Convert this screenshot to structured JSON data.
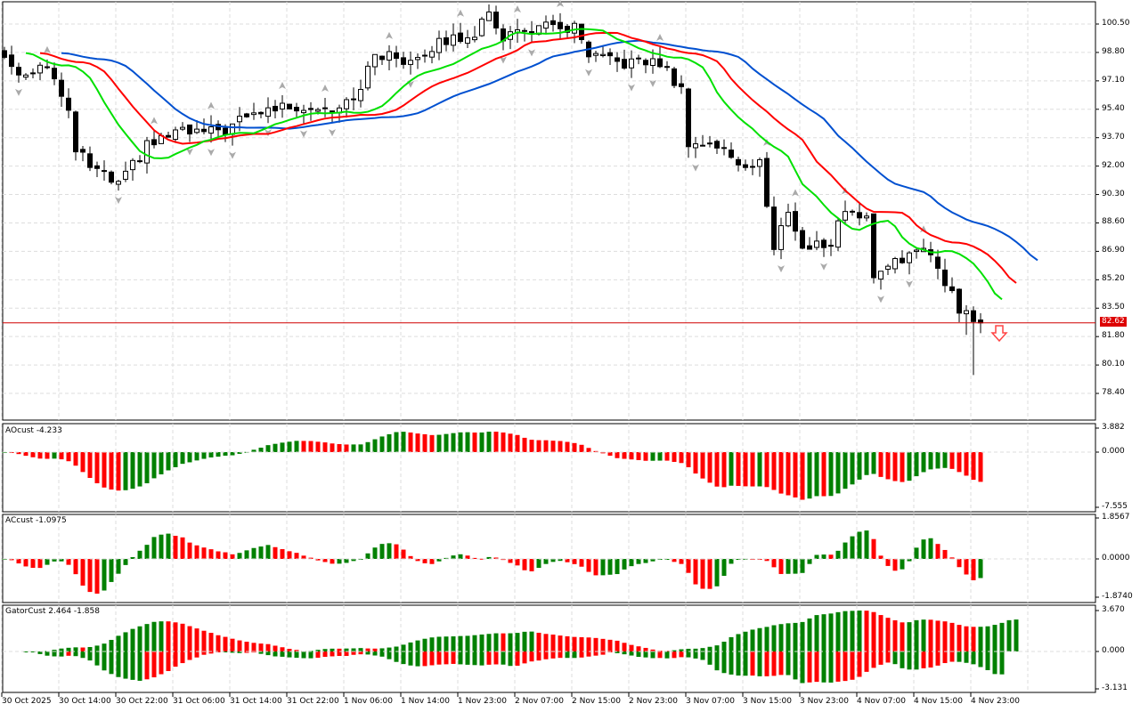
{
  "main": {
    "price_ticks": [
      "100.50",
      "98.80",
      "97.10",
      "95.40",
      "93.70",
      "92.00",
      "90.30",
      "88.60",
      "86.90",
      "85.20",
      "83.50",
      "81.80",
      "80.10",
      "78.40"
    ],
    "current_price": "82.62",
    "price_keypoints": [
      [
        0,
        98.5
      ],
      [
        2,
        97.5
      ],
      [
        6,
        98.2
      ],
      [
        9,
        95.0
      ],
      [
        10,
        93.0
      ],
      [
        12,
        92.0
      ],
      [
        16,
        90.8
      ],
      [
        20,
        93.2
      ],
      [
        24,
        94.0
      ],
      [
        30,
        94.0
      ],
      [
        36,
        95.3
      ],
      [
        40,
        95.6
      ],
      [
        46,
        95.5
      ],
      [
        50,
        96.5
      ],
      [
        52,
        98.8
      ],
      [
        56,
        98.3
      ],
      [
        62,
        99.5
      ],
      [
        66,
        100.0
      ],
      [
        68,
        101.0
      ],
      [
        70,
        99.8
      ],
      [
        75,
        100.3
      ],
      [
        80,
        100.2
      ],
      [
        82,
        98.5
      ],
      [
        86,
        98.2
      ],
      [
        92,
        98.2
      ],
      [
        95,
        96.5
      ],
      [
        96,
        93.5
      ],
      [
        100,
        93.2
      ],
      [
        104,
        92.0
      ],
      [
        106,
        92.3
      ],
      [
        108,
        86.9
      ],
      [
        110,
        89.5
      ],
      [
        112,
        87.0
      ],
      [
        116,
        87.5
      ],
      [
        118,
        89.5
      ],
      [
        121,
        88.8
      ],
      [
        122,
        85.5
      ],
      [
        125,
        86.5
      ],
      [
        130,
        86.8
      ],
      [
        132,
        85.2
      ],
      [
        134,
        83.5
      ],
      [
        136,
        82.7
      ],
      [
        137,
        82.62
      ]
    ],
    "colors": {
      "jaw": "#0050d0",
      "teeth": "#ff0000",
      "lips": "#00e000",
      "price_line": "#d00000",
      "bull": "#008000",
      "bear": "#ff0000"
    }
  },
  "ao": {
    "title": "AOcust -4.233",
    "ticks": [
      "3.882",
      "0.000",
      "-7.555"
    ],
    "range": [
      -7.555,
      3.882
    ]
  },
  "ac": {
    "title": "ACcust -1.0975",
    "ticks": [
      "1.8567",
      "0.0000",
      "-1.8740"
    ],
    "range": [
      -1.874,
      1.8567
    ]
  },
  "gator": {
    "title": "GatorCust 2.464 -1.858",
    "ticks": [
      "3.670",
      "0.000",
      "-3.131"
    ],
    "range": [
      -3.131,
      3.67
    ]
  },
  "time_labels": [
    "30 Oct 2025",
    "30 Oct 14:00",
    "30 Oct 22:00",
    "31 Oct 06:00",
    "31 Oct 14:00",
    "31 Oct 22:00",
    "1 Nov 06:00",
    "1 Nov 14:00",
    "1 Nov 23:00",
    "2 Nov 07:00",
    "2 Nov 15:00",
    "2 Nov 23:00",
    "3 Nov 07:00",
    "3 Nov 15:00",
    "3 Nov 23:00",
    "4 Nov 07:00",
    "4 Nov 15:00",
    "4 Nov 23:00"
  ]
}
